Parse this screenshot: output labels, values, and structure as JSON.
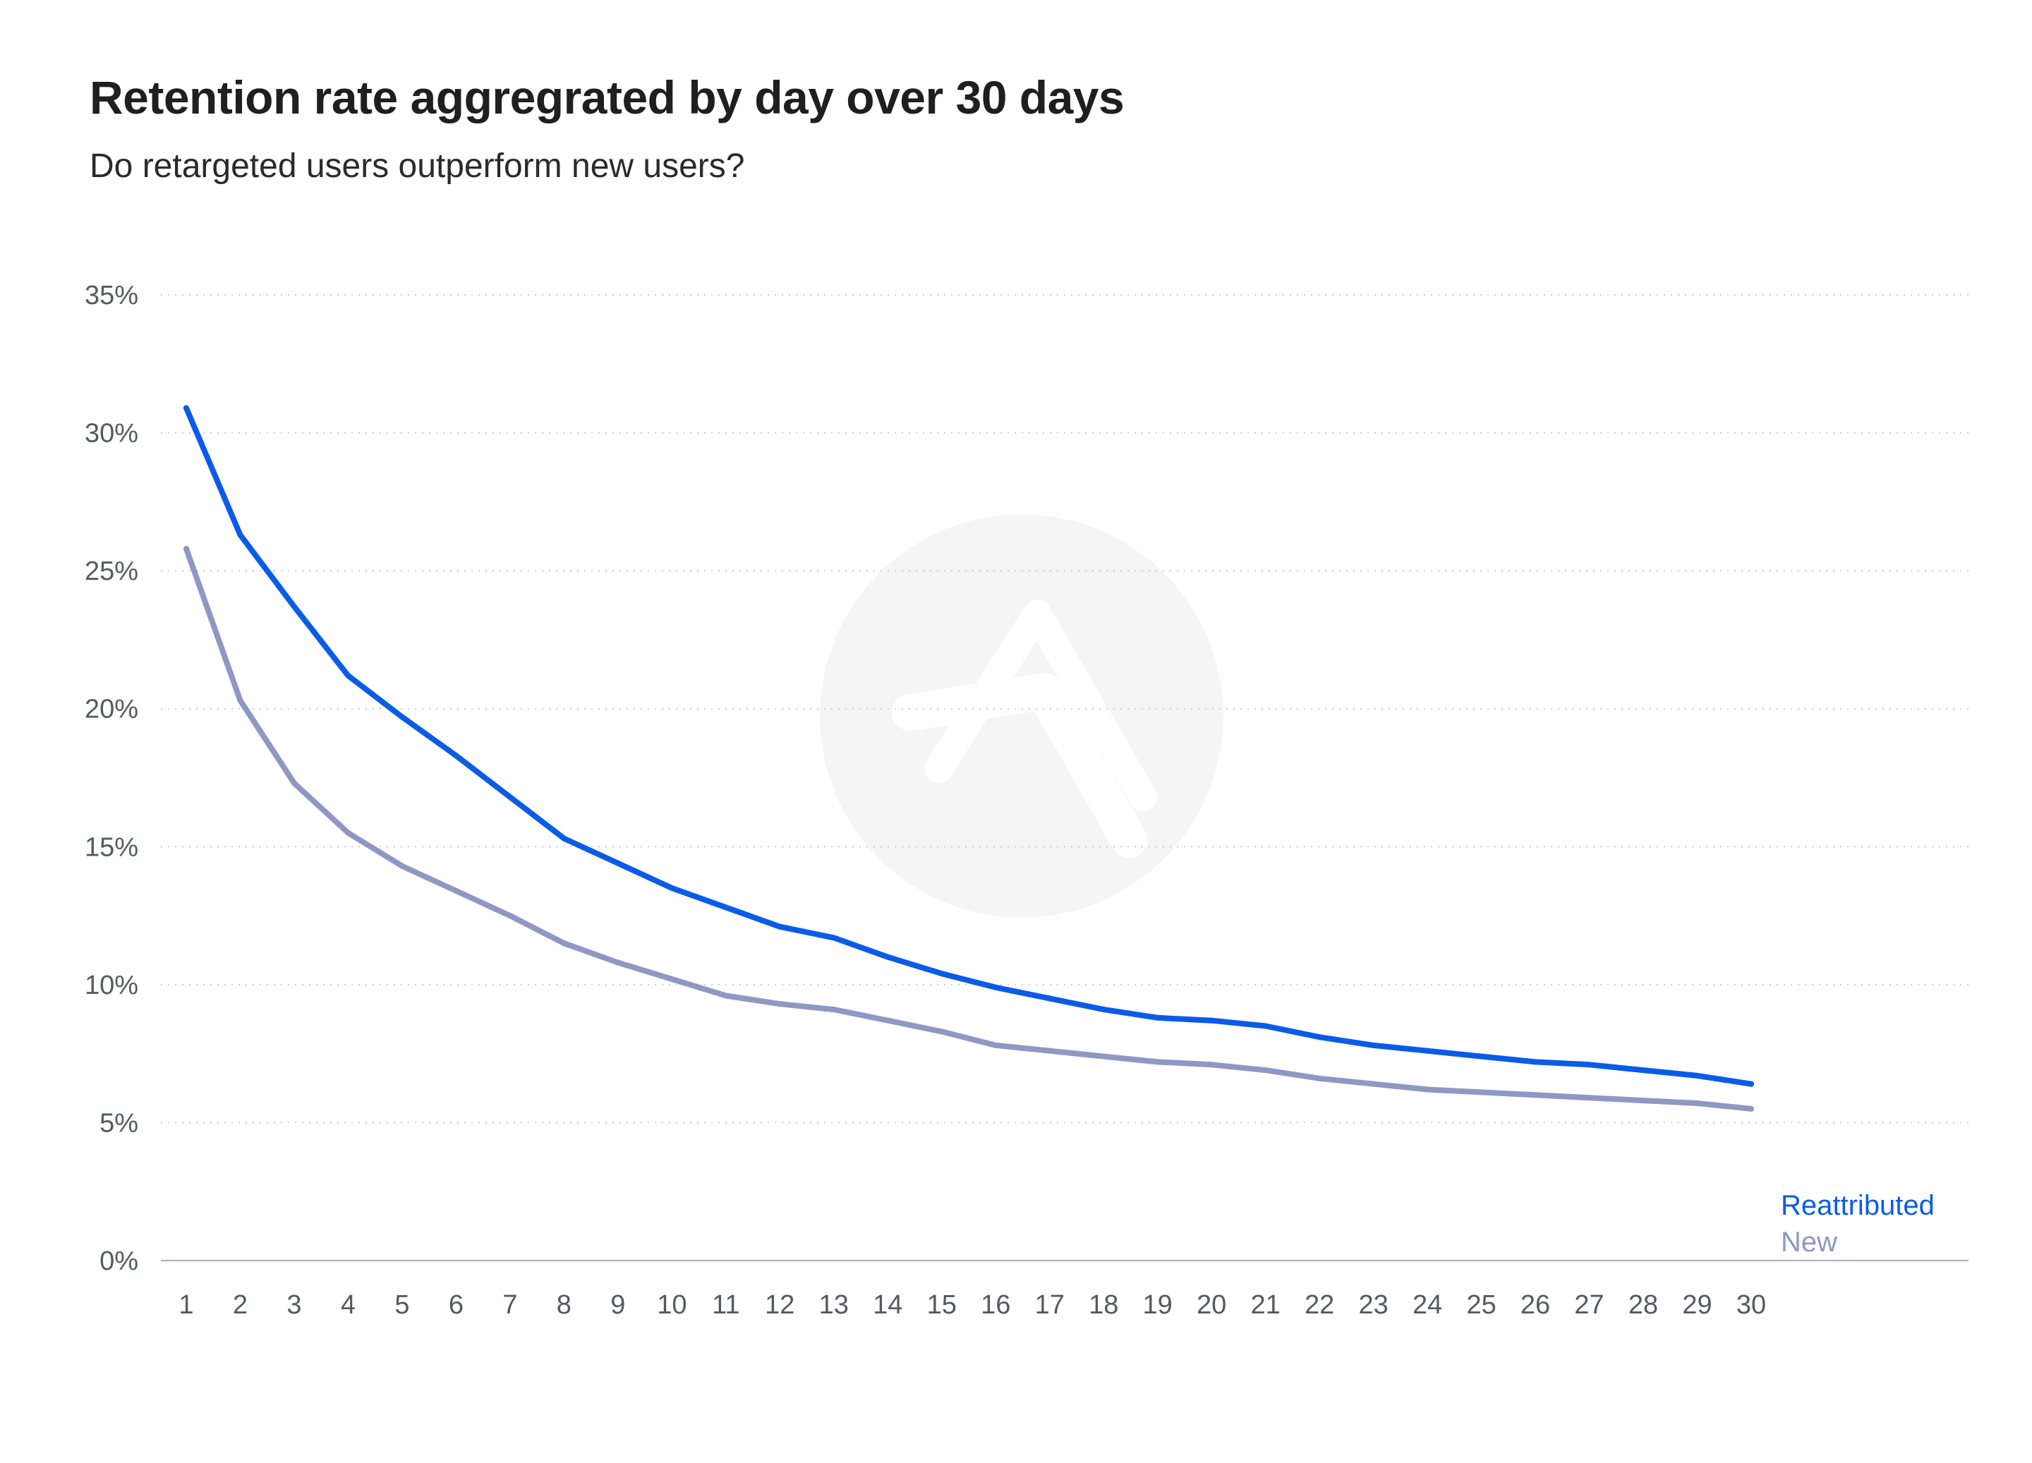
{
  "chart_data": {
    "type": "line",
    "title": "Retention rate aggregrated by day over 30 days",
    "subtitle": "Do retargeted users outperform new users?",
    "xlabel": "",
    "ylabel": "",
    "x": [
      1,
      2,
      3,
      4,
      5,
      6,
      7,
      8,
      9,
      10,
      11,
      12,
      13,
      14,
      15,
      16,
      17,
      18,
      19,
      20,
      21,
      22,
      23,
      24,
      25,
      26,
      27,
      28,
      29,
      30
    ],
    "ylim": [
      0,
      35
    ],
    "yticks": [
      0,
      5,
      10,
      15,
      20,
      25,
      30,
      35
    ],
    "ytick_labels": [
      "0%",
      "5%",
      "10%",
      "15%",
      "20%",
      "25%",
      "30%",
      "35%"
    ],
    "grid": true,
    "legend_position": "bottom-right",
    "series": [
      {
        "name": "Reattributed",
        "color": "#0a5ce8",
        "values": [
          30.9,
          26.3,
          23.7,
          21.2,
          19.7,
          18.3,
          16.8,
          15.3,
          14.4,
          13.5,
          12.8,
          12.1,
          11.7,
          11.0,
          10.4,
          9.9,
          9.5,
          9.1,
          8.8,
          8.7,
          8.5,
          8.1,
          7.8,
          7.6,
          7.4,
          7.2,
          7.1,
          6.9,
          6.7,
          6.4
        ]
      },
      {
        "name": "New",
        "color": "#8f98c4",
        "values": [
          25.8,
          20.3,
          17.3,
          15.5,
          14.3,
          13.4,
          12.5,
          11.5,
          10.8,
          10.2,
          9.6,
          9.3,
          9.1,
          8.7,
          8.3,
          7.8,
          7.6,
          7.4,
          7.2,
          7.1,
          6.9,
          6.6,
          6.4,
          6.2,
          6.1,
          6.0,
          5.9,
          5.8,
          5.7,
          5.5
        ]
      }
    ],
    "watermark": "logo-icon"
  }
}
